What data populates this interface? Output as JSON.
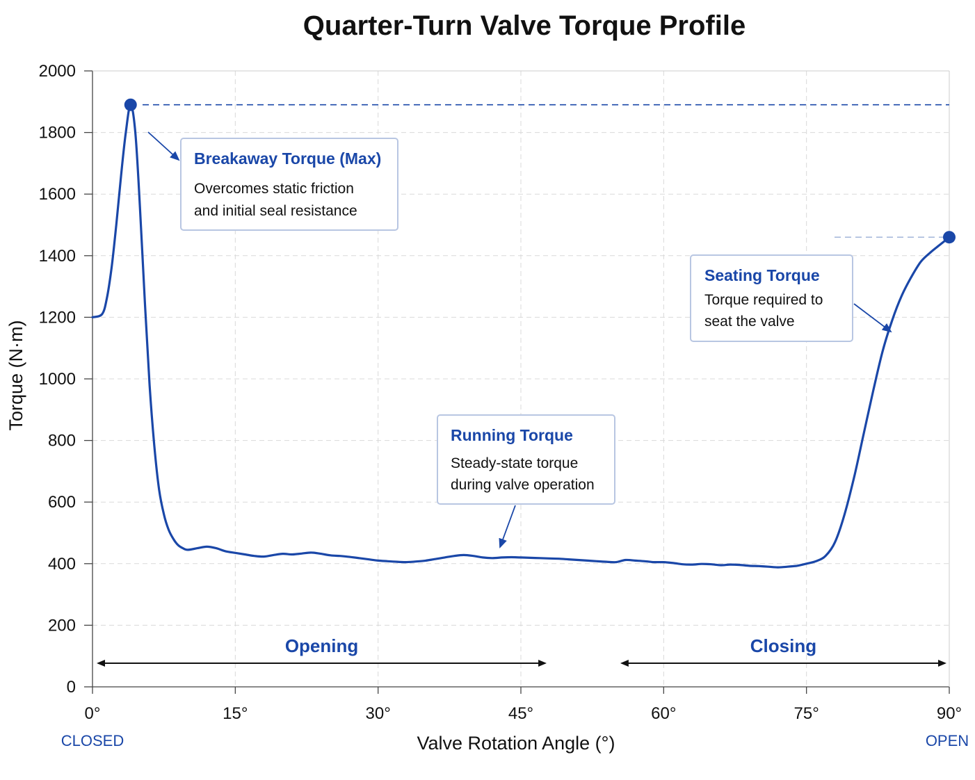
{
  "chart_data": {
    "type": "line",
    "title": "Quarter-Turn Valve Torque Profile",
    "xlabel": "Valve Rotation Angle (°)",
    "ylabel": "Torque (N·m)",
    "xlim": [
      0,
      90
    ],
    "ylim": [
      0,
      2000
    ],
    "x_ticks": [
      {
        "value": 0,
        "label": "0°"
      },
      {
        "value": 15,
        "label": "15°"
      },
      {
        "value": 30,
        "label": "30°"
      },
      {
        "value": 45,
        "label": "45°"
      },
      {
        "value": 60,
        "label": "60°"
      },
      {
        "value": 75,
        "label": "75°"
      },
      {
        "value": 90,
        "label": "90°"
      }
    ],
    "y_ticks": [
      0,
      200,
      400,
      600,
      800,
      1000,
      1200,
      1400,
      1600,
      1800,
      2000
    ],
    "grid": true,
    "line_color": "#1a47a8",
    "accent_color": "#1a47a8",
    "end_labels": {
      "left": "CLOSED",
      "right": "OPEN"
    },
    "series": [
      {
        "x": [
          0,
          1,
          1.5,
          2,
          2.5,
          3,
          3.5,
          4,
          4.5,
          5,
          5.5,
          6,
          6.5,
          7,
          7.5,
          8,
          8.5,
          9,
          9.5,
          10,
          11,
          12,
          13,
          14,
          15,
          16,
          17,
          18,
          19,
          20,
          21,
          22,
          23,
          24,
          25,
          26,
          27,
          28,
          29,
          30,
          31,
          32,
          33,
          34,
          35,
          36,
          37,
          38,
          39,
          40,
          41,
          42,
          43,
          44,
          45,
          46,
          47,
          48,
          49,
          50,
          51,
          52,
          53,
          54,
          55,
          56,
          57,
          58,
          59,
          60,
          61,
          62,
          63,
          64,
          65,
          66,
          67,
          68,
          69,
          70,
          71,
          72,
          73,
          74,
          75,
          76,
          77,
          78,
          79,
          80,
          81,
          82,
          83,
          84,
          85,
          86,
          87,
          88,
          89,
          90
        ],
        "y": [
          1200,
          1210,
          1260,
          1360,
          1500,
          1660,
          1800,
          1890,
          1800,
          1550,
          1250,
          980,
          780,
          640,
          560,
          510,
          480,
          460,
          450,
          445,
          450,
          455,
          450,
          440,
          435,
          430,
          425,
          423,
          428,
          432,
          430,
          433,
          436,
          432,
          427,
          425,
          422,
          418,
          414,
          410,
          408,
          406,
          405,
          407,
          410,
          415,
          420,
          425,
          428,
          425,
          420,
          418,
          420,
          421,
          420,
          419,
          418,
          417,
          416,
          414,
          412,
          410,
          408,
          406,
          405,
          412,
          410,
          408,
          405,
          405,
          402,
          398,
          397,
          399,
          398,
          395,
          397,
          396,
          393,
          392,
          390,
          388,
          390,
          393,
          400,
          408,
          425,
          470,
          560,
          680,
          820,
          960,
          1090,
          1190,
          1270,
          1330,
          1380,
          1410,
          1435,
          1460
        ]
      }
    ],
    "points": [
      {
        "x": 4,
        "y": 1890
      },
      {
        "x": 90,
        "y": 1460
      }
    ],
    "annotations": [
      {
        "title": "Breakaway Torque (Max)",
        "lines": [
          "Overcomes static friction",
          "and initial seal resistance"
        ]
      },
      {
        "title": "Seating Torque",
        "lines": [
          "Torque required to",
          "seat the valve"
        ]
      },
      {
        "title": "Running Torque",
        "lines": [
          "Steady-state torque",
          "during valve operation"
        ]
      }
    ],
    "phases": [
      {
        "label": "Opening",
        "from": 0,
        "to": 48
      },
      {
        "label": "Closing",
        "from": 55,
        "to": 90
      }
    ]
  }
}
